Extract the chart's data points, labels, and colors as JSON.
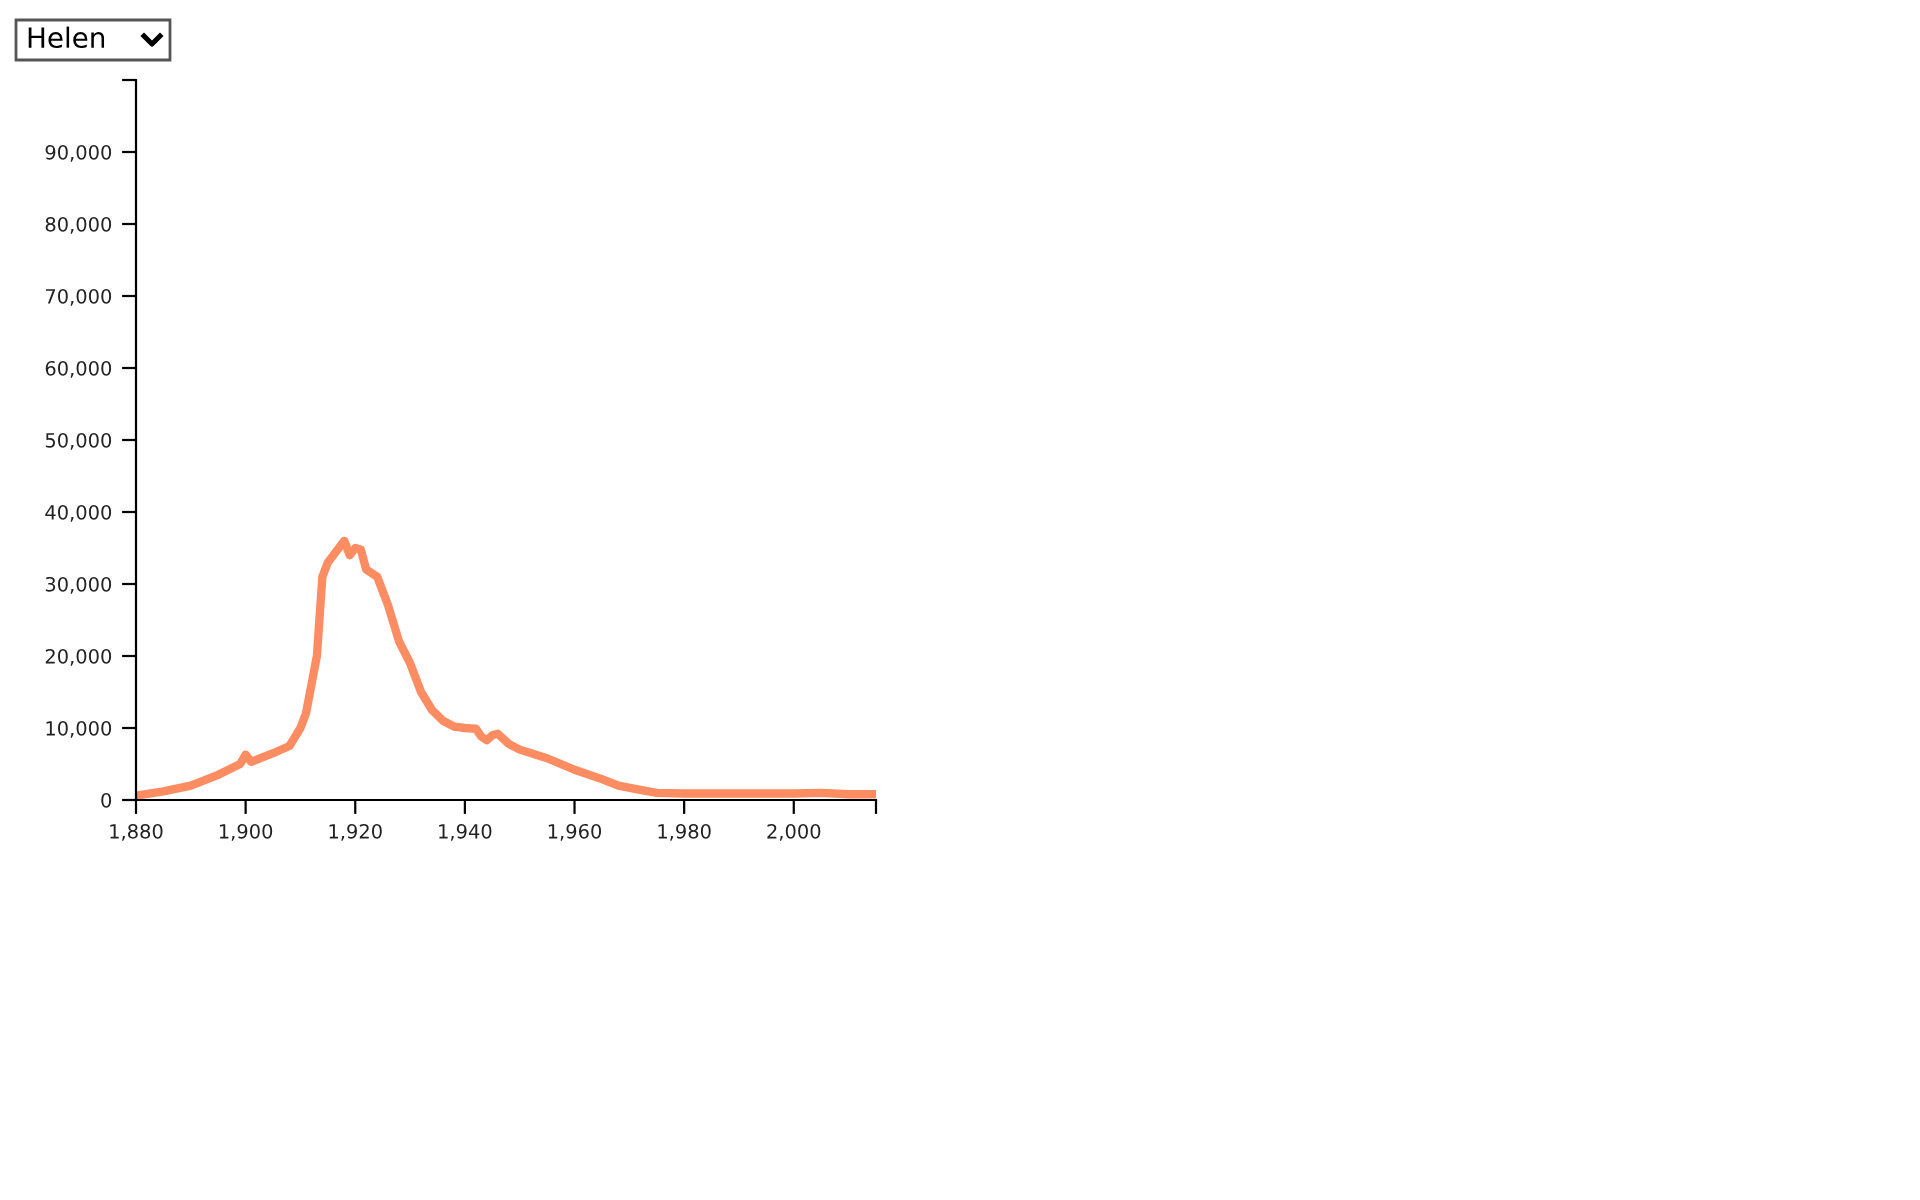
{
  "chart_data": {
    "type": "line",
    "title": "Helen",
    "x": [
      1880,
      1885,
      1890,
      1895,
      1899,
      1900,
      1901,
      1905,
      1908,
      1910,
      1911,
      1912,
      1913,
      1914,
      1915,
      1917,
      1918,
      1919,
      1920,
      1921,
      1922,
      1924,
      1926,
      1928,
      1930,
      1932,
      1934,
      1936,
      1938,
      1940,
      1942,
      1943,
      1944,
      1945,
      1946,
      1948,
      1950,
      1955,
      1960,
      1965,
      1968,
      1972,
      1975,
      1980,
      1990,
      2000,
      2005,
      2010,
      2015
    ],
    "series": [
      {
        "color": "#fc8d62",
        "values": [
          600,
          1200,
          2000,
          3500,
          5000,
          6300,
          5300,
          6500,
          7500,
          10000,
          12000,
          16000,
          20000,
          31000,
          33000,
          35000,
          36000,
          34000,
          35000,
          34800,
          32000,
          31000,
          27000,
          22000,
          19000,
          15000,
          12500,
          11000,
          10200,
          10000,
          9900,
          8800,
          8300,
          9000,
          9200,
          7800,
          7000,
          5800,
          4200,
          2900,
          2000,
          1400,
          1000,
          900,
          900,
          900,
          1000,
          800,
          800
        ]
      }
    ],
    "xlim": [
      1880,
      2015
    ],
    "xticks": [
      {
        "value": 1880,
        "label": "1,880"
      },
      {
        "value": 1900,
        "label": "1,900"
      },
      {
        "value": 1920,
        "label": "1,920"
      },
      {
        "value": 1940,
        "label": "1,940"
      },
      {
        "value": 1960,
        "label": "1,960"
      },
      {
        "value": 1980,
        "label": "1,980"
      },
      {
        "value": 2000,
        "label": "2,000"
      },
      {
        "value": 2015,
        "label": null
      }
    ],
    "ylim": [
      0,
      100000
    ],
    "yticks": [
      0,
      {
        "value": 10000,
        "label": "10,000"
      },
      {
        "value": 20000,
        "label": "20,000"
      },
      {
        "value": 30000,
        "label": "30,000"
      },
      {
        "value": 40000,
        "label": "40,000"
      },
      {
        "value": 50000,
        "label": "50,000"
      },
      {
        "value": 60000,
        "label": "60,000"
      },
      {
        "value": 70000,
        "label": "70,000"
      },
      {
        "value": 80000,
        "label": "80,000"
      },
      {
        "value": 90000,
        "label": "90,000"
      },
      {
        "value": 100000,
        "label": null
      }
    ],
    "grid": false
  }
}
